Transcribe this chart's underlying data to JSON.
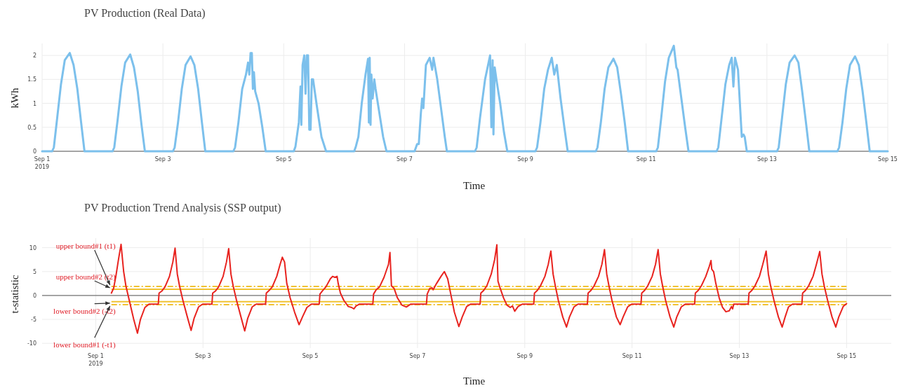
{
  "chart_data": [
    {
      "type": "line",
      "title": "PV Production (Real Data)",
      "xlabel": "Time",
      "ylabel": "kWh",
      "xlim": [
        "2019-09-01",
        "2019-09-15"
      ],
      "xticks": [
        {
          "value": "2019-09-01",
          "label": "Sep 1\n2019"
        },
        {
          "value": "2019-09-03",
          "label": "Sep 3"
        },
        {
          "value": "2019-09-05",
          "label": "Sep 5"
        },
        {
          "value": "2019-09-07",
          "label": "Sep 7"
        },
        {
          "value": "2019-09-09",
          "label": "Sep 9"
        },
        {
          "value": "2019-09-11",
          "label": "Sep 11"
        },
        {
          "value": "2019-09-13",
          "label": "Sep 13"
        },
        {
          "value": "2019-09-15",
          "label": "Sep 15"
        }
      ],
      "ylim": [
        0,
        2.25
      ],
      "yticks": [
        0,
        0.5,
        1,
        1.5,
        2
      ],
      "grid": true,
      "series": [
        {
          "color": "#7cc0ec",
          "x": [
            "2019-09-01T00:00",
            "2019-09-01T04:00",
            "2019-09-01T04:40",
            "2019-09-01T06:00",
            "2019-09-01T07:30",
            "2019-09-01T09:00",
            "2019-09-01T11:00",
            "2019-09-01T12:30",
            "2019-09-01T14:00",
            "2019-09-01T15:30",
            "2019-09-01T16:50",
            "2019-09-02T04:00",
            "2019-09-02T04:40",
            "2019-09-02T06:00",
            "2019-09-02T07:30",
            "2019-09-02T09:00",
            "2019-09-02T11:00",
            "2019-09-02T12:30",
            "2019-09-02T14:00",
            "2019-09-02T15:30",
            "2019-09-02T16:50",
            "2019-09-03T04:00",
            "2019-09-03T04:40",
            "2019-09-03T06:00",
            "2019-09-03T07:30",
            "2019-09-03T09:00",
            "2019-09-03T11:00",
            "2019-09-03T12:30",
            "2019-09-03T14:00",
            "2019-09-03T15:30",
            "2019-09-03T16:50",
            "2019-09-04T04:00",
            "2019-09-04T04:40",
            "2019-09-04T06:00",
            "2019-09-04T07:30",
            "2019-09-04T09:00",
            "2019-09-04T09:50",
            "2019-09-04T10:20",
            "2019-09-04T10:50",
            "2019-09-04T11:20",
            "2019-09-04T11:45",
            "2019-09-04T12:10",
            "2019-09-04T12:40",
            "2019-09-04T14:00",
            "2019-09-04T15:30",
            "2019-09-04T16:50",
            "2019-09-05T04:00",
            "2019-09-05T04:40",
            "2019-09-05T06:00",
            "2019-09-05T06:40",
            "2019-09-05T07:00",
            "2019-09-05T07:30",
            "2019-09-05T08:10",
            "2019-09-05T08:40",
            "2019-09-05T09:10",
            "2019-09-05T09:40",
            "2019-09-05T10:10",
            "2019-09-05T10:40",
            "2019-09-05T11:10",
            "2019-09-05T11:40",
            "2019-09-05T13:00",
            "2019-09-05T15:00",
            "2019-09-05T16:50",
            "2019-09-06T04:00",
            "2019-09-06T04:40",
            "2019-09-06T05:40",
            "2019-09-06T07:00",
            "2019-09-06T08:30",
            "2019-09-06T09:30",
            "2019-09-06T09:50",
            "2019-09-06T10:10",
            "2019-09-06T10:30",
            "2019-09-06T10:50",
            "2019-09-06T11:20",
            "2019-09-06T12:00",
            "2019-09-06T12:30",
            "2019-09-06T14:00",
            "2019-09-06T15:30",
            "2019-09-06T16:50",
            "2019-09-07T04:00",
            "2019-09-07T05:00",
            "2019-09-07T05:40",
            "2019-09-07T06:30",
            "2019-09-07T07:00",
            "2019-09-07T07:30",
            "2019-09-07T08:30",
            "2019-09-07T10:00",
            "2019-09-07T11:00",
            "2019-09-07T11:30",
            "2019-09-07T13:00",
            "2019-09-07T14:30",
            "2019-09-07T16:00",
            "2019-09-07T16:50",
            "2019-09-08T04:00",
            "2019-09-08T04:40",
            "2019-09-08T06:00",
            "2019-09-08T08:00",
            "2019-09-08T10:00",
            "2019-09-08T10:30",
            "2019-09-08T11:00",
            "2019-09-08T11:20",
            "2019-09-08T11:50",
            "2019-09-08T12:30",
            "2019-09-08T14:00",
            "2019-09-08T15:30",
            "2019-09-08T16:50",
            "2019-09-09T04:00",
            "2019-09-09T04:40",
            "2019-09-09T06:00",
            "2019-09-09T07:30",
            "2019-09-09T09:00",
            "2019-09-09T10:30",
            "2019-09-09T11:30",
            "2019-09-09T12:30",
            "2019-09-09T14:00",
            "2019-09-09T15:30",
            "2019-09-09T16:50",
            "2019-09-10T04:00",
            "2019-09-10T04:40",
            "2019-09-10T06:00",
            "2019-09-10T07:30",
            "2019-09-10T09:00",
            "2019-09-10T11:00",
            "2019-09-10T12:30",
            "2019-09-10T14:00",
            "2019-09-10T15:30",
            "2019-09-10T16:50",
            "2019-09-11T04:00",
            "2019-09-11T04:40",
            "2019-09-11T06:00",
            "2019-09-11T07:30",
            "2019-09-11T09:00",
            "2019-09-11T11:00",
            "2019-09-11T12:00",
            "2019-09-11T12:30",
            "2019-09-11T14:00",
            "2019-09-11T15:30",
            "2019-09-11T16:50",
            "2019-09-12T04:00",
            "2019-09-12T04:40",
            "2019-09-12T06:00",
            "2019-09-12T07:30",
            "2019-09-12T09:00",
            "2019-09-12T10:00",
            "2019-09-12T10:40",
            "2019-09-12T11:20",
            "2019-09-12T12:30",
            "2019-09-12T14:00",
            "2019-09-12T14:40",
            "2019-09-12T15:10",
            "2019-09-12T16:00",
            "2019-09-13T04:00",
            "2019-09-13T04:40",
            "2019-09-13T06:00",
            "2019-09-13T07:30",
            "2019-09-13T09:00",
            "2019-09-13T11:00",
            "2019-09-13T12:30",
            "2019-09-13T14:00",
            "2019-09-13T15:30",
            "2019-09-13T16:50",
            "2019-09-14T04:00",
            "2019-09-14T04:40",
            "2019-09-14T06:00",
            "2019-09-14T07:30",
            "2019-09-14T09:00",
            "2019-09-14T11:00",
            "2019-09-14T12:30",
            "2019-09-14T14:00",
            "2019-09-14T15:30",
            "2019-09-14T16:50",
            "2019-09-15T00:00"
          ],
          "values": [
            0,
            0,
            0.08,
            0.7,
            1.4,
            1.9,
            2.05,
            1.8,
            1.3,
            0.6,
            0,
            0,
            0.08,
            0.65,
            1.35,
            1.85,
            2.02,
            1.75,
            1.25,
            0.55,
            0,
            0,
            0.08,
            0.6,
            1.3,
            1.8,
            1.98,
            1.8,
            1.3,
            0.6,
            0,
            0,
            0.08,
            0.6,
            1.3,
            1.6,
            1.85,
            1.6,
            2.05,
            2.05,
            1.3,
            1.65,
            1.25,
            1.0,
            0.5,
            0,
            0,
            0.1,
            0.6,
            1.35,
            0.55,
            1.8,
            2.0,
            1.2,
            2.0,
            2.0,
            0.45,
            0.45,
            1.5,
            1.5,
            1.0,
            0.3,
            0,
            0,
            0.1,
            0.3,
            1.0,
            1.6,
            1.93,
            0.6,
            1.95,
            0.55,
            1.6,
            1.1,
            1.5,
            1.3,
            0.8,
            0.3,
            0,
            0,
            0.15,
            0.15,
            0.8,
            1.1,
            0.9,
            1.8,
            1.95,
            1.7,
            1.95,
            1.5,
            0.9,
            0.3,
            0,
            0,
            0.08,
            0.7,
            1.5,
            2.0,
            0.5,
            1.9,
            0.35,
            1.75,
            1.5,
            1.0,
            0.4,
            0,
            0,
            0.08,
            0.6,
            1.3,
            1.7,
            1.95,
            1.6,
            1.8,
            1.1,
            0.5,
            0,
            0,
            0.08,
            0.6,
            1.3,
            1.75,
            1.93,
            1.75,
            1.2,
            0.6,
            0,
            0,
            0.08,
            0.7,
            1.45,
            1.95,
            2.2,
            1.75,
            1.7,
            1.1,
            0.5,
            0,
            0,
            0.08,
            0.7,
            1.4,
            1.8,
            1.95,
            1.35,
            1.95,
            1.7,
            0.3,
            0.35,
            0.3,
            0,
            0,
            0.08,
            0.7,
            1.4,
            1.85,
            2.0,
            1.85,
            1.25,
            0.6,
            0,
            0,
            0.08,
            0.6,
            1.3,
            1.8,
            1.98,
            1.8,
            1.25,
            0.6,
            0,
            0
          ]
        }
      ]
    },
    {
      "type": "line",
      "title": "PV Production Trend Analysis (SSP output)",
      "xlabel": "Time",
      "ylabel": "t-statistic",
      "xlim": [
        "2019-08-31T00:00",
        "2019-09-15T20:00"
      ],
      "xticks": [
        {
          "value": "2019-09-01",
          "label": "Sep 1\n2019"
        },
        {
          "value": "2019-09-03",
          "label": "Sep 3"
        },
        {
          "value": "2019-09-05",
          "label": "Sep 5"
        },
        {
          "value": "2019-09-07",
          "label": "Sep 7"
        },
        {
          "value": "2019-09-09",
          "label": "Sep 9"
        },
        {
          "value": "2019-09-11",
          "label": "Sep 11"
        },
        {
          "value": "2019-09-13",
          "label": "Sep 13"
        },
        {
          "value": "2019-09-15",
          "label": "Sep 15"
        }
      ],
      "ylim": [
        -11,
        12
      ],
      "yticks": [
        -10,
        -5,
        0,
        5,
        10
      ],
      "grid": true,
      "ref_lines": [
        {
          "axis": "y",
          "value": 1.9,
          "label": "upper bound#1 (t1)",
          "color": "#f0c232",
          "line_style": "dashed"
        },
        {
          "axis": "y",
          "value": 1.3,
          "label": "upper bound#2 (t2)",
          "color": "#f0c232",
          "line_style": "solid"
        },
        {
          "axis": "y",
          "value": -1.3,
          "label": "lower bound#2 (-t2)",
          "color": "#f0c232",
          "line_style": "solid"
        },
        {
          "axis": "y",
          "value": -1.9,
          "label": "lower bound#1 (-t1)",
          "color": "#f0c232",
          "line_style": "dashed"
        }
      ],
      "series": [
        {
          "color": "#e8231f",
          "x": [
            "2019-09-01T07:00",
            "2019-09-01T08:00",
            "2019-09-01T09:00",
            "2019-09-01T10:20",
            "2019-09-01T11:20",
            "2019-09-01T12:30",
            "2019-09-01T13:30",
            "2019-09-01T15:00",
            "2019-09-01T17:00",
            "2019-09-01T18:40",
            "2019-09-01T20:00",
            "2019-09-01T22:00",
            "2019-09-01T23:50",
            "2019-09-02T04:00",
            "2019-09-02T04:20",
            "2019-09-02T05:30",
            "2019-09-02T07:00",
            "2019-09-02T09:00",
            "2019-09-02T10:30",
            "2019-09-02T11:30",
            "2019-09-02T12:30",
            "2019-09-02T13:30",
            "2019-09-02T15:00",
            "2019-09-02T17:00",
            "2019-09-02T18:40",
            "2019-09-02T20:00",
            "2019-09-02T22:00",
            "2019-09-02T23:50",
            "2019-09-03T04:00",
            "2019-09-03T04:20",
            "2019-09-03T05:30",
            "2019-09-03T07:00",
            "2019-09-03T09:00",
            "2019-09-03T10:30",
            "2019-09-03T11:30",
            "2019-09-03T12:30",
            "2019-09-03T13:30",
            "2019-09-03T15:00",
            "2019-09-03T17:00",
            "2019-09-03T18:40",
            "2019-09-03T20:00",
            "2019-09-03T22:00",
            "2019-09-03T23:50",
            "2019-09-04T04:00",
            "2019-09-04T04:20",
            "2019-09-04T05:30",
            "2019-09-04T07:00",
            "2019-09-04T09:00",
            "2019-09-04T10:30",
            "2019-09-04T11:30",
            "2019-09-04T12:30",
            "2019-09-04T13:30",
            "2019-09-04T15:00",
            "2019-09-04T17:00",
            "2019-09-04T19:00",
            "2019-09-04T20:30",
            "2019-09-04T22:30",
            "2019-09-05T00:30",
            "2019-09-05T04:00",
            "2019-09-05T04:20",
            "2019-09-05T05:30",
            "2019-09-05T07:00",
            "2019-09-05T09:00",
            "2019-09-05T10:00",
            "2019-09-05T11:00",
            "2019-09-05T12:00",
            "2019-09-05T12:30",
            "2019-09-05T13:30",
            "2019-09-05T15:00",
            "2019-09-05T17:00",
            "2019-09-05T18:30",
            "2019-09-05T19:30",
            "2019-09-05T20:30",
            "2019-09-05T22:00",
            "2019-09-06T04:00",
            "2019-09-06T04:20",
            "2019-09-06T05:30",
            "2019-09-06T07:00",
            "2019-09-06T09:00",
            "2019-09-06T11:00",
            "2019-09-06T11:40",
            "2019-09-06T12:20",
            "2019-09-06T13:30",
            "2019-09-06T15:00",
            "2019-09-06T17:00",
            "2019-09-06T19:00",
            "2019-09-06T21:00",
            "2019-09-07T04:00",
            "2019-09-07T04:20",
            "2019-09-07T05:30",
            "2019-09-07T06:30",
            "2019-09-07T07:00",
            "2019-09-07T08:30",
            "2019-09-07T10:30",
            "2019-09-07T12:00",
            "2019-09-07T13:30",
            "2019-09-07T15:00",
            "2019-09-07T16:30",
            "2019-09-07T18:30",
            "2019-09-07T20:00",
            "2019-09-07T22:00",
            "2019-09-07T23:50",
            "2019-09-08T04:00",
            "2019-09-08T04:20",
            "2019-09-08T05:30",
            "2019-09-08T07:00",
            "2019-09-08T09:00",
            "2019-09-08T10:30",
            "2019-09-08T11:30",
            "2019-09-08T12:00",
            "2019-09-08T13:00",
            "2019-09-08T14:30",
            "2019-09-08T16:00",
            "2019-09-08T17:30",
            "2019-09-08T18:30",
            "2019-09-08T19:30",
            "2019-09-08T21:00",
            "2019-09-08T23:00",
            "2019-09-09T04:00",
            "2019-09-09T04:20",
            "2019-09-09T05:30",
            "2019-09-09T07:00",
            "2019-09-09T09:00",
            "2019-09-09T10:30",
            "2019-09-09T11:40",
            "2019-09-09T12:40",
            "2019-09-09T13:40",
            "2019-09-09T15:00",
            "2019-09-09T17:00",
            "2019-09-09T18:40",
            "2019-09-09T20:00",
            "2019-09-09T22:00",
            "2019-09-09T23:50",
            "2019-09-10T04:00",
            "2019-09-10T04:20",
            "2019-09-10T05:30",
            "2019-09-10T07:00",
            "2019-09-10T09:00",
            "2019-09-10T10:30",
            "2019-09-10T11:40",
            "2019-09-10T12:40",
            "2019-09-10T13:40",
            "2019-09-10T15:00",
            "2019-09-10T17:00",
            "2019-09-10T18:40",
            "2019-09-10T20:00",
            "2019-09-10T22:00",
            "2019-09-10T23:50",
            "2019-09-11T04:00",
            "2019-09-11T04:20",
            "2019-09-11T05:30",
            "2019-09-11T07:00",
            "2019-09-11T09:00",
            "2019-09-11T10:30",
            "2019-09-11T11:40",
            "2019-09-11T12:40",
            "2019-09-11T13:40",
            "2019-09-11T15:00",
            "2019-09-11T17:00",
            "2019-09-11T18:40",
            "2019-09-11T20:00",
            "2019-09-11T22:00",
            "2019-09-11T23:50",
            "2019-09-12T04:00",
            "2019-09-12T04:20",
            "2019-09-12T05:30",
            "2019-09-12T07:00",
            "2019-09-12T09:00",
            "2019-09-12T10:30",
            "2019-09-12T11:20",
            "2019-09-12T11:40",
            "2019-09-12T12:30",
            "2019-09-12T13:30",
            "2019-09-12T15:00",
            "2019-09-12T16:30",
            "2019-09-12T18:00",
            "2019-09-12T19:30",
            "2019-09-12T20:30",
            "2019-09-12T21:00",
            "2019-09-12T21:30",
            "2019-09-13T04:00",
            "2019-09-13T04:20",
            "2019-09-13T05:30",
            "2019-09-13T07:00",
            "2019-09-13T09:00",
            "2019-09-13T10:30",
            "2019-09-13T12:00",
            "2019-09-13T13:00",
            "2019-09-13T14:00",
            "2019-09-13T15:30",
            "2019-09-13T17:30",
            "2019-09-13T19:10",
            "2019-09-13T20:30",
            "2019-09-13T22:00",
            "2019-09-13T23:50",
            "2019-09-14T04:00",
            "2019-09-14T04:20",
            "2019-09-14T05:30",
            "2019-09-14T07:00",
            "2019-09-14T09:00",
            "2019-09-14T10:30",
            "2019-09-14T12:00",
            "2019-09-14T13:00",
            "2019-09-14T14:00",
            "2019-09-14T15:30",
            "2019-09-14T17:30",
            "2019-09-14T19:10",
            "2019-09-14T20:30",
            "2019-09-14T22:30",
            "2019-09-15T00:00"
          ],
          "values": [
            0.5,
            1.5,
            4,
            8,
            10.7,
            5,
            2,
            -1,
            -5,
            -7.9,
            -5,
            -2.5,
            -1.8,
            -1.8,
            0.5,
            0.9,
            1.8,
            4,
            7,
            9.9,
            4.5,
            2,
            -1,
            -4.5,
            -7.3,
            -4.8,
            -2.4,
            -1.8,
            -1.8,
            0.5,
            0.9,
            1.8,
            4,
            7,
            9.8,
            4.5,
            2,
            -1,
            -4.5,
            -7.4,
            -4.8,
            -2.4,
            -1.8,
            -1.8,
            0.5,
            1,
            1.8,
            4,
            6.5,
            8,
            7,
            2.5,
            -0.5,
            -3.5,
            -6.1,
            -4.5,
            -2.5,
            -1.8,
            -1.8,
            0.3,
            1,
            1.8,
            3.5,
            4,
            3.8,
            4,
            2.5,
            0.5,
            -1,
            -2.3,
            -2.5,
            -2.8,
            -2.2,
            -1.8,
            -1.8,
            0.3,
            1.2,
            1.8,
            3.8,
            6.5,
            9,
            2,
            1.5,
            -0.5,
            -2,
            -2.4,
            -1.8,
            -1.8,
            0.3,
            1.5,
            1.6,
            1.2,
            2.5,
            4,
            5,
            3.5,
            0,
            -3.5,
            -6.5,
            -4.5,
            -2.3,
            -1.8,
            -1.8,
            0.5,
            1,
            2,
            4.5,
            7.5,
            10.6,
            3,
            1.5,
            -0.5,
            -2,
            -2.5,
            -2.2,
            -3.3,
            -2.3,
            -1.8,
            -1.8,
            0.5,
            1,
            2,
            4,
            6.5,
            9.3,
            4.5,
            2,
            -1,
            -4.5,
            -6.6,
            -4.5,
            -2.4,
            -1.8,
            -1.8,
            0.5,
            1,
            2,
            4,
            6.5,
            9.6,
            4.5,
            2,
            -1,
            -4.5,
            -6.1,
            -4.5,
            -2.4,
            -1.8,
            -1.8,
            0.5,
            1,
            2,
            4,
            6.5,
            9.6,
            4.5,
            2,
            -1,
            -4.5,
            -6.6,
            -4.5,
            -2.4,
            -1.8,
            -1.8,
            0.5,
            1,
            2,
            4,
            6,
            7.3,
            5.5,
            5,
            2.5,
            -0.5,
            -2.5,
            -3.4,
            -3.2,
            -2.3,
            -2.8,
            -1.8,
            -1.8,
            0.5,
            1,
            2,
            4,
            6.5,
            9.3,
            4.5,
            2,
            -1,
            -4.5,
            -6.6,
            -4.5,
            -2.4,
            -1.8,
            -1.8,
            0.5,
            1,
            2,
            4,
            6.5,
            9.2,
            4.5,
            2,
            -1,
            -4.5,
            -6.6,
            -4.5,
            -2.3,
            -1.7
          ]
        }
      ]
    }
  ]
}
